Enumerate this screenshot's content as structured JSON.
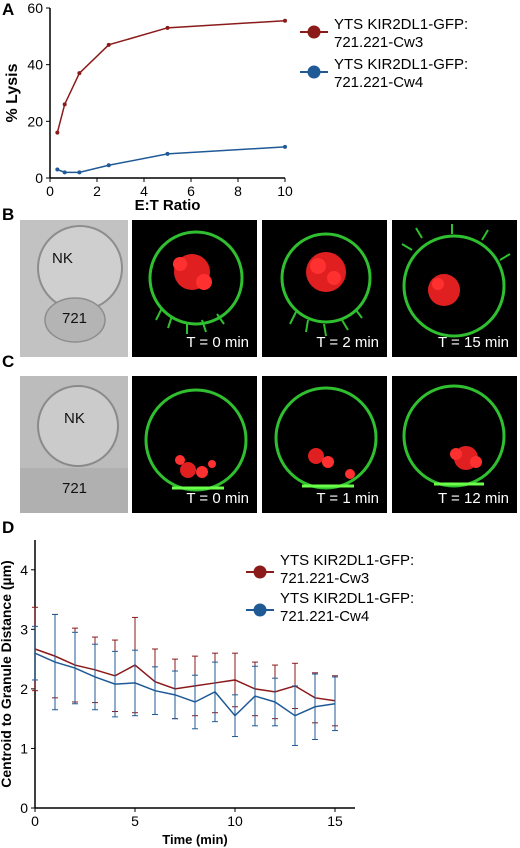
{
  "panels": {
    "A": "A",
    "B": "B",
    "C": "C",
    "D": "D"
  },
  "colors": {
    "cw3": "#8b1a1a",
    "cw4": "#1f5a96"
  },
  "chart_data": [
    {
      "type": "line",
      "xlabel": "E:T Ratio",
      "ylabel": "% Lysis",
      "xlim": [
        0,
        10
      ],
      "ylim": [
        0,
        60
      ],
      "xticks": [
        "0",
        "2",
        "4",
        "6",
        "8",
        "10"
      ],
      "yticks": [
        "0",
        "20",
        "40",
        "60"
      ],
      "legend_position": "right",
      "series": [
        {
          "name": "YTS KIR2DL1-GFP:\n721.221-Cw3",
          "line1": "YTS KIR2DL1-GFP:",
          "line2": "721.221-Cw3",
          "x": [
            0.3125,
            0.625,
            1.25,
            2.5,
            5,
            10
          ],
          "y": [
            16,
            26,
            37,
            47,
            53,
            55.5
          ]
        },
        {
          "name": "YTS KIR2DL1-GFP:\n721.221-Cw4",
          "line1": "YTS KIR2DL1-GFP:",
          "line2": "721.221-Cw4",
          "x": [
            0.3125,
            0.625,
            1.25,
            2.5,
            5,
            10
          ],
          "y": [
            3,
            2,
            2,
            4.5,
            8.5,
            11
          ]
        }
      ]
    },
    {
      "type": "line",
      "xlabel": "Time (min)",
      "ylabel": "Centroid to Granule Distance (µm)",
      "xlim": [
        0,
        16
      ],
      "ylim": [
        0,
        4.5
      ],
      "xticks": [
        "0",
        "5",
        "10",
        "15"
      ],
      "yticks": [
        "0",
        "1",
        "2",
        "3",
        "4"
      ],
      "legend_position": "top-right",
      "series": [
        {
          "name": "YTS KIR2DL1-GFP:\n721.221-Cw3",
          "line1": "YTS KIR2DL1-GFP:",
          "line2": "721.221-Cw3",
          "x": [
            0,
            1,
            2,
            3,
            4,
            5,
            6,
            7,
            8,
            9,
            10,
            11,
            12,
            13,
            14,
            15
          ],
          "y": [
            2.67,
            2.55,
            2.4,
            2.32,
            2.22,
            2.4,
            2.12,
            2.0,
            2.05,
            2.1,
            2.15,
            2.0,
            1.95,
            2.05,
            1.85,
            1.8
          ],
          "err": [
            0.7,
            0.7,
            0.62,
            0.55,
            0.6,
            0.8,
            0.55,
            0.5,
            0.5,
            0.5,
            0.45,
            0.45,
            0.45,
            0.38,
            0.42,
            0.42
          ]
        },
        {
          "name": "YTS KIR2DL1-GFP:\n721.221-Cw4",
          "line1": "YTS KIR2DL1-GFP:",
          "line2": "721.221-Cw4",
          "x": [
            0,
            1,
            2,
            3,
            4,
            5,
            6,
            7,
            8,
            9,
            10,
            11,
            12,
            13,
            14,
            15
          ],
          "y": [
            2.6,
            2.45,
            2.35,
            2.2,
            2.08,
            2.1,
            1.97,
            1.9,
            1.78,
            1.95,
            1.55,
            1.88,
            1.78,
            1.55,
            1.7,
            1.75
          ],
          "err": [
            0.45,
            0.8,
            0.6,
            0.55,
            0.55,
            0.55,
            0.4,
            0.4,
            0.45,
            0.5,
            0.35,
            0.5,
            0.4,
            0.5,
            0.55,
            0.45
          ]
        }
      ]
    }
  ],
  "micrographs": {
    "B": {
      "nk": "NK",
      "target": "721",
      "times": [
        "T = 0 min",
        "T = 2 min",
        "T = 15 min"
      ]
    },
    "C": {
      "nk": "NK",
      "target": "721",
      "times": [
        "T = 0 min",
        "T = 1 min",
        "T = 12 min"
      ]
    }
  }
}
